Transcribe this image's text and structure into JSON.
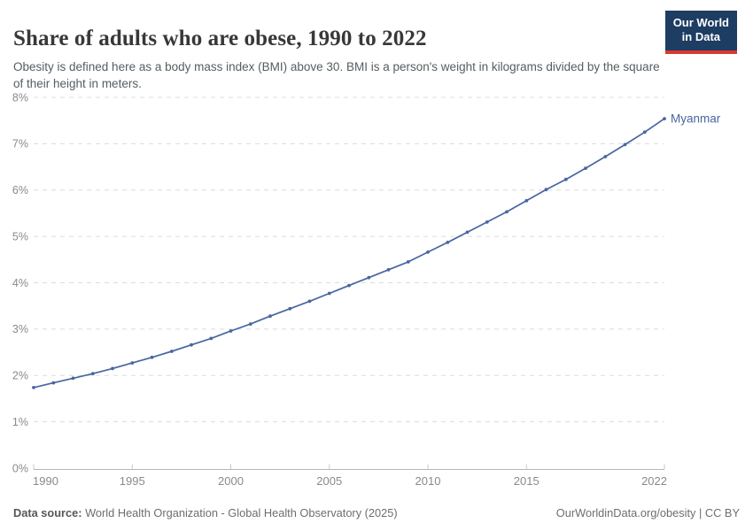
{
  "header": {
    "title": "Share of adults who are obese, 1990 to 2022",
    "subtitle": "Obesity is defined here as a body mass index (BMI) above 30. BMI is a person's weight in kilograms divided by the square of their height in meters.",
    "logo_line1": "Our World",
    "logo_line2": "in Data"
  },
  "footer": {
    "datasource_label": "Data source:",
    "datasource_text": " World Health Organization - Global Health Observatory (2025)",
    "credit": "OurWorldinData.org/obesity | CC BY"
  },
  "colors": {
    "accent": "#4866a0",
    "logo_bg": "#1d3d63",
    "logo_red": "#d73a32",
    "grid": "#dcdcdc",
    "axis": "#b5b5b5",
    "tick": "#c8c8c8",
    "tick_text": "#8a8a8a"
  },
  "chart_data": {
    "type": "line",
    "title": "Share of adults who are obese, 1990 to 2022",
    "xlabel": "",
    "ylabel": "",
    "xlim": [
      1990,
      2022
    ],
    "ylim": [
      0,
      8
    ],
    "grid": "horizontal-dashed",
    "legend_position": "end-of-line-label",
    "x_ticks": [
      1990,
      1995,
      2000,
      2005,
      2010,
      2015,
      2022
    ],
    "y_ticks": [
      "0%",
      "1%",
      "2%",
      "3%",
      "4%",
      "5%",
      "6%",
      "7%",
      "8%"
    ],
    "series": [
      {
        "name": "Myanmar",
        "color": "#4866a0",
        "x": [
          1990,
          1991,
          1992,
          1993,
          1994,
          1995,
          1996,
          1997,
          1998,
          1999,
          2000,
          2001,
          2002,
          2003,
          2004,
          2005,
          2006,
          2007,
          2008,
          2009,
          2010,
          2011,
          2012,
          2013,
          2014,
          2015,
          2016,
          2017,
          2018,
          2019,
          2020,
          2021,
          2022
        ],
        "values": [
          1.74,
          1.84,
          1.94,
          2.04,
          2.15,
          2.27,
          2.39,
          2.52,
          2.66,
          2.8,
          2.96,
          3.11,
          3.28,
          3.44,
          3.6,
          3.77,
          3.94,
          4.11,
          4.28,
          4.45,
          4.66,
          4.87,
          5.09,
          5.31,
          5.53,
          5.77,
          6.01,
          6.23,
          6.47,
          6.72,
          6.98,
          7.25,
          7.54
        ]
      }
    ]
  }
}
